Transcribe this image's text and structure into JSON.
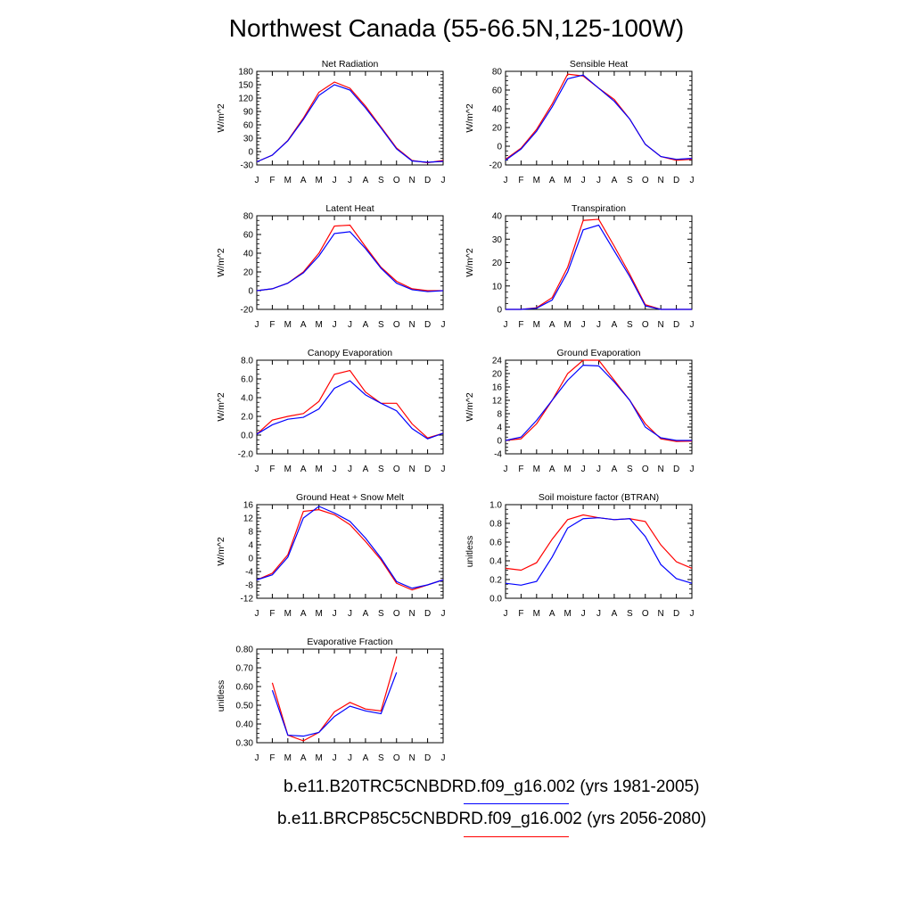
{
  "figure": {
    "title": "Northwest Canada (55-66.5N,125-100W)",
    "colors": {
      "control": "#0000ff",
      "future": "#ff0000"
    }
  },
  "legend": {
    "entries": [
      {
        "label": "b.e11.B20TRC5CNBDRD.f09_g16.002 (yrs 1981-2005)",
        "color": "#0000ff"
      },
      {
        "label": "b.e11.BRCP85C5CNBDRD.f09_g16.002 (yrs 2056-2080)",
        "color": "#ff0000"
      }
    ]
  },
  "chart_data": [
    {
      "type": "line",
      "title": "Net Radiation",
      "ylabel": "W/m^2",
      "categories": [
        "J",
        "F",
        "M",
        "A",
        "M",
        "J",
        "J",
        "A",
        "S",
        "O",
        "N",
        "D",
        "J"
      ],
      "ylim": [
        -30,
        180
      ],
      "yticks": [
        -30,
        0,
        30,
        60,
        90,
        120,
        150,
        180
      ],
      "ytick_labels": [
        "-30",
        "0",
        "30",
        "60",
        "90",
        "120",
        "150",
        "180"
      ],
      "series": [
        {
          "color": "#ff0000",
          "values": [
            -23,
            -8,
            25,
            75,
            133,
            156,
            142,
            102,
            55,
            8,
            -20,
            -25,
            -20
          ]
        },
        {
          "color": "#0000ff",
          "values": [
            -23,
            -8,
            24,
            72,
            126,
            150,
            138,
            98,
            53,
            6,
            -21,
            -24,
            -22
          ]
        }
      ]
    },
    {
      "type": "line",
      "title": "Sensible Heat",
      "ylabel": "W/m^2",
      "categories": [
        "J",
        "F",
        "M",
        "A",
        "M",
        "J",
        "J",
        "A",
        "S",
        "O",
        "N",
        "D",
        "J"
      ],
      "ylim": [
        -20,
        80
      ],
      "yticks": [
        -20,
        0,
        20,
        40,
        60,
        80
      ],
      "ytick_labels": [
        "-20",
        "0",
        "20",
        "40",
        "60",
        "80"
      ],
      "series": [
        {
          "color": "#ff0000",
          "values": [
            -14,
            -2,
            18,
            45,
            77,
            75,
            62,
            50,
            29,
            2,
            -11,
            -15,
            -14
          ]
        },
        {
          "color": "#0000ff",
          "values": [
            -15,
            -3,
            16,
            42,
            72,
            76,
            62,
            48,
            29,
            2,
            -11,
            -14,
            -13
          ]
        }
      ]
    },
    {
      "type": "line",
      "title": "Latent Heat",
      "ylabel": "W/m^2",
      "categories": [
        "J",
        "F",
        "M",
        "A",
        "M",
        "J",
        "J",
        "A",
        "S",
        "O",
        "N",
        "D",
        "J"
      ],
      "ylim": [
        -20,
        80
      ],
      "yticks": [
        -20,
        0,
        20,
        40,
        60,
        80
      ],
      "ytick_labels": [
        "-20",
        "0",
        "20",
        "40",
        "60",
        "80"
      ],
      "series": [
        {
          "color": "#ff0000",
          "values": [
            0,
            2,
            8,
            20,
            40,
            69,
            70,
            47,
            25,
            10,
            2,
            0,
            0
          ]
        },
        {
          "color": "#0000ff",
          "values": [
            0,
            2,
            8,
            19,
            37,
            61,
            63,
            45,
            24,
            8,
            1,
            -1,
            0
          ]
        }
      ]
    },
    {
      "type": "line",
      "title": "Transpiration",
      "ylabel": "W/m^2",
      "categories": [
        "J",
        "F",
        "M",
        "A",
        "M",
        "J",
        "J",
        "A",
        "S",
        "O",
        "N",
        "D",
        "J"
      ],
      "ylim": [
        0,
        40
      ],
      "yticks": [
        0,
        10,
        20,
        30,
        40
      ],
      "ytick_labels": [
        "0",
        "10",
        "20",
        "30",
        "40"
      ],
      "series": [
        {
          "color": "#ff0000",
          "values": [
            0,
            0,
            0.7,
            5,
            18,
            38,
            38.5,
            27,
            15,
            2,
            0,
            0,
            0
          ]
        },
        {
          "color": "#0000ff",
          "values": [
            0,
            0,
            0.5,
            4,
            16,
            34,
            36,
            25,
            14,
            1.5,
            0,
            0,
            0
          ]
        }
      ]
    },
    {
      "type": "line",
      "title": "Canopy Evaporation",
      "ylabel": "W/m^2",
      "categories": [
        "J",
        "F",
        "M",
        "A",
        "M",
        "J",
        "J",
        "A",
        "S",
        "O",
        "N",
        "D",
        "J"
      ],
      "ylim": [
        -2,
        8
      ],
      "yticks": [
        -2,
        0,
        2,
        4,
        6,
        8
      ],
      "ytick_labels": [
        "-2.0",
        "0.0",
        "2.0",
        "4.0",
        "6.0",
        "8.0"
      ],
      "series": [
        {
          "color": "#ff0000",
          "values": [
            0.1,
            1.6,
            2.0,
            2.3,
            3.6,
            6.5,
            6.9,
            4.6,
            3.4,
            3.4,
            1.2,
            -0.3,
            0.2
          ]
        },
        {
          "color": "#0000ff",
          "values": [
            0.1,
            1.1,
            1.7,
            1.9,
            2.8,
            5.0,
            5.8,
            4.3,
            3.4,
            2.6,
            0.7,
            -0.4,
            0.2
          ]
        }
      ]
    },
    {
      "type": "line",
      "title": "Ground Evaporation",
      "ylabel": "W/m^2",
      "categories": [
        "J",
        "F",
        "M",
        "A",
        "M",
        "J",
        "J",
        "A",
        "S",
        "O",
        "N",
        "D",
        "J"
      ],
      "ylim": [
        -4,
        24
      ],
      "yticks": [
        -4,
        0,
        4,
        8,
        12,
        16,
        20,
        24
      ],
      "ytick_labels": [
        "-4",
        "0",
        "4",
        "8",
        "12",
        "16",
        "20",
        "24"
      ],
      "series": [
        {
          "color": "#ff0000",
          "values": [
            0,
            0.5,
            5,
            12,
            20,
            24,
            24,
            18,
            12,
            5,
            0.5,
            -0.3,
            -0.2
          ]
        },
        {
          "color": "#0000ff",
          "values": [
            0,
            1.0,
            6,
            12,
            18,
            22.5,
            22.3,
            17.5,
            12,
            4,
            0.8,
            0,
            0
          ]
        }
      ]
    },
    {
      "type": "line",
      "title": "Ground Heat + Snow Melt",
      "ylabel": "W/m^2",
      "categories": [
        "J",
        "F",
        "M",
        "A",
        "M",
        "J",
        "J",
        "A",
        "S",
        "O",
        "N",
        "D",
        "J"
      ],
      "ylim": [
        -12,
        16
      ],
      "yticks": [
        -12,
        -8,
        -4,
        0,
        4,
        8,
        12,
        16
      ],
      "ytick_labels": [
        "-12",
        "-8",
        "-4",
        "0",
        "4",
        "8",
        "12",
        "16"
      ],
      "series": [
        {
          "color": "#ff0000",
          "values": [
            -6.5,
            -4.5,
            1,
            14,
            14.5,
            13,
            10,
            5,
            -0.5,
            -7.5,
            -9.5,
            -8,
            -6.5
          ]
        },
        {
          "color": "#0000ff",
          "values": [
            -6.5,
            -5,
            0.3,
            12,
            15.5,
            13.5,
            11,
            6,
            0,
            -7,
            -9,
            -8,
            -6.5
          ]
        }
      ]
    },
    {
      "type": "line",
      "title": "Soil moisture factor (BTRAN)",
      "ylabel": "unitless",
      "categories": [
        "J",
        "F",
        "M",
        "A",
        "M",
        "J",
        "J",
        "A",
        "S",
        "O",
        "N",
        "D",
        "J"
      ],
      "ylim": [
        0,
        1
      ],
      "yticks": [
        0,
        0.2,
        0.4,
        0.6,
        0.8,
        1.0
      ],
      "ytick_labels": [
        "0.0",
        "0.2",
        "0.4",
        "0.6",
        "0.8",
        "1.0"
      ],
      "series": [
        {
          "color": "#ff0000",
          "values": [
            0.32,
            0.3,
            0.38,
            0.63,
            0.84,
            0.89,
            0.86,
            0.84,
            0.85,
            0.82,
            0.57,
            0.39,
            0.32
          ]
        },
        {
          "color": "#0000ff",
          "values": [
            0.16,
            0.14,
            0.18,
            0.44,
            0.75,
            0.85,
            0.86,
            0.84,
            0.85,
            0.66,
            0.36,
            0.21,
            0.16
          ]
        }
      ]
    },
    {
      "type": "line",
      "title": "Evaporative Fraction",
      "ylabel": "unitless",
      "categories": [
        "J",
        "F",
        "M",
        "A",
        "M",
        "J",
        "J",
        "A",
        "S",
        "O",
        "N",
        "D",
        "J"
      ],
      "ylim": [
        0.3,
        0.8
      ],
      "yticks": [
        0.3,
        0.4,
        0.5,
        0.6,
        0.7,
        0.8
      ],
      "ytick_labels": [
        "0.30",
        "0.40",
        "0.50",
        "0.60",
        "0.70",
        "0.80"
      ],
      "series": [
        {
          "color": "#ff0000",
          "values": [
            null,
            0.62,
            0.34,
            0.31,
            0.355,
            0.465,
            0.515,
            0.48,
            0.47,
            0.76,
            null,
            null,
            null
          ]
        },
        {
          "color": "#0000ff",
          "values": [
            null,
            0.58,
            0.34,
            0.335,
            0.355,
            0.44,
            0.495,
            0.47,
            0.455,
            0.675,
            null,
            null,
            null
          ]
        }
      ]
    }
  ]
}
